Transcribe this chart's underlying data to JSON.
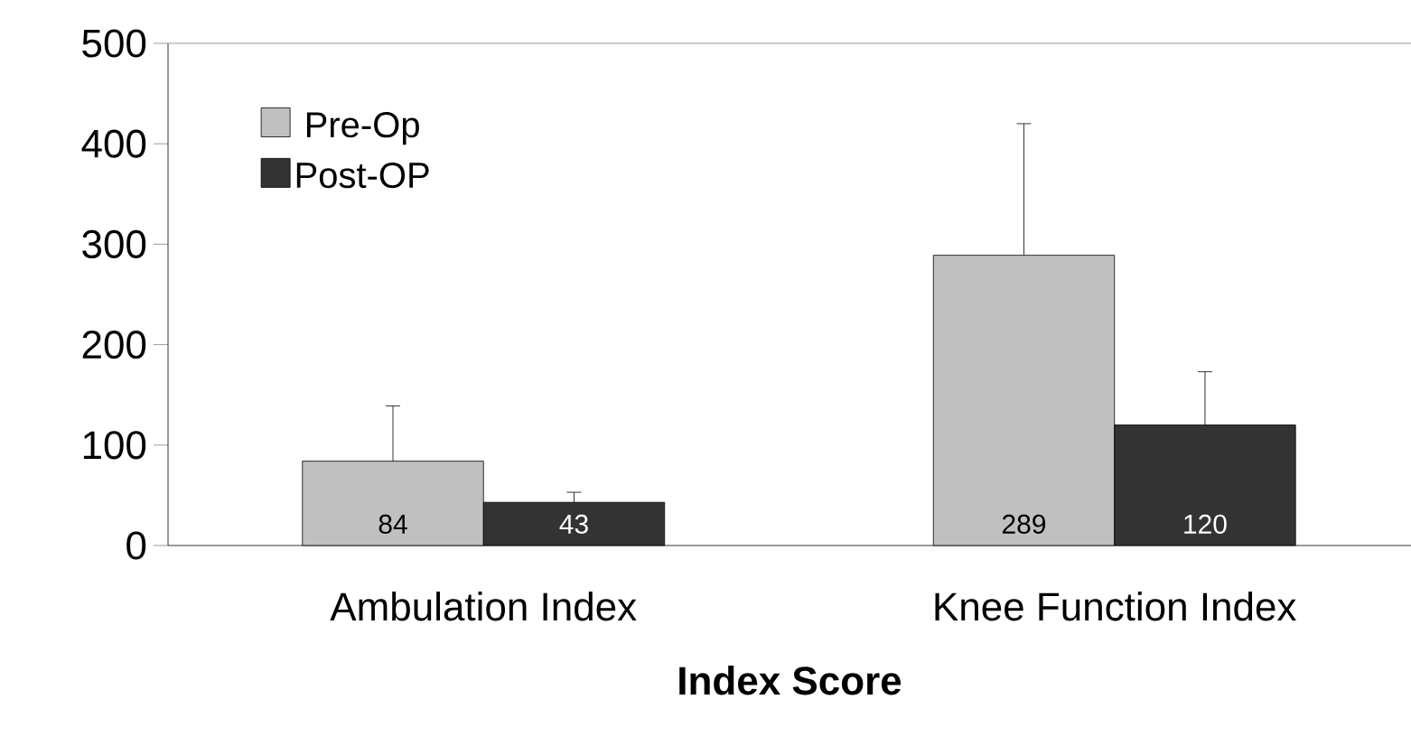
{
  "chart_data": {
    "type": "bar",
    "xlabel": "Index Score",
    "categories": [
      "Ambulation Index",
      "Knee Function Index"
    ],
    "series": [
      {
        "name": "Pre-Op",
        "color": "#c0c0c0",
        "values": [
          84,
          289
        ],
        "errors": [
          [
            84,
            139
          ],
          [
            289,
            420
          ]
        ]
      },
      {
        "name": "Post-OP",
        "color": "#333333",
        "values": [
          43,
          120
        ],
        "errors": [
          [
            43,
            53
          ],
          [
            120,
            173
          ]
        ]
      }
    ],
    "ylim": [
      0,
      500
    ],
    "yticks": [
      0,
      100,
      200,
      300,
      400,
      500
    ],
    "data_labels": true,
    "legend": "top left",
    "grid": false
  }
}
